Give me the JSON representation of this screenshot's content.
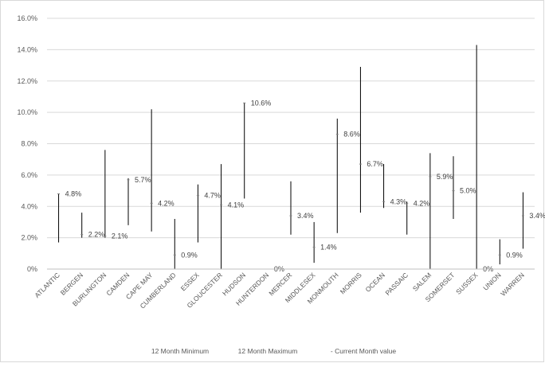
{
  "chart_data": {
    "type": "stock",
    "categories": [
      "ATLANTIC",
      "BERGEN",
      "BURLINGTON",
      "CAMDEN",
      "CAPE MAY",
      "CUMBERLAND",
      "ESSEX",
      "GLOUCESTER",
      "HUDSON",
      "HUNTERDON",
      "MERCER",
      "MIDDLESEX",
      "MONMOUTH",
      "MORRIS",
      "OCEAN",
      "PASSAIC",
      "SALEM",
      "SOMERSET",
      "SUSSEX",
      "UNION",
      "WARREN"
    ],
    "series": [
      {
        "name": "12 Month Minimum",
        "values": [
          1.7,
          2.0,
          2.0,
          2.8,
          2.4,
          0.0,
          1.7,
          0.0,
          4.5,
          0.0,
          2.2,
          0.4,
          2.3,
          3.6,
          3.9,
          2.2,
          0.0,
          3.2,
          0.0,
          0.3,
          1.3
        ]
      },
      {
        "name": "12 Month Maximum",
        "values": [
          4.8,
          3.6,
          7.6,
          5.8,
          10.2,
          3.2,
          5.4,
          6.7,
          10.6,
          0.0,
          5.6,
          3.0,
          9.6,
          12.9,
          6.7,
          4.3,
          7.4,
          7.2,
          14.3,
          1.9,
          4.9
        ]
      },
      {
        "name": "Current Month value",
        "values": [
          4.8,
          2.2,
          2.1,
          5.7,
          4.2,
          0.9,
          4.7,
          4.1,
          10.6,
          0,
          3.4,
          1.4,
          8.6,
          6.7,
          4.3,
          4.2,
          5.9,
          5.0,
          0,
          0.9,
          3.4
        ]
      }
    ],
    "data_labels": [
      "4.8%",
      "2.2%",
      "2.1%",
      "5.7%",
      "4.2%",
      "0.9%",
      "4.7%",
      "4.1%",
      "10.6%",
      "0%",
      "3.4%",
      "1.4%",
      "8.6%",
      "6.7%",
      "4.3%",
      "4.2%",
      "5.9%",
      "5.0%",
      "0%",
      "0.9%",
      "3.4%"
    ],
    "ylim": [
      0,
      16
    ],
    "y_ticks": [
      "0%",
      "2.0%",
      "4.0%",
      "6.0%",
      "8.0%",
      "10.0%",
      "12.0%",
      "14.0%",
      "16.0%"
    ],
    "grid": true,
    "legend_position": "bottom",
    "legend": [
      "12 Month Minimum",
      "12 Month Maximum",
      "- Current Month value"
    ],
    "colors": {
      "line": "#000000",
      "grid": "#d9d9d9",
      "axis": "#bfbfbf",
      "text": "#595959"
    }
  }
}
